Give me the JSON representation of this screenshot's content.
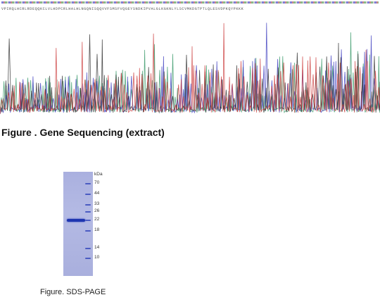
{
  "sequencing": {
    "sequence": "VPIRQLHCRLRDEQQKCLVLHDPCRLHALHLNGQNISQQVVFSMSFVQGEYSNDKIPVALGLKGKNLYLSCVMKDGTPTLQLESVDPKQYPKKK",
    "caption": "Figure . Gene Sequencing (extract)"
  },
  "gel": {
    "header": "kDa",
    "markers": [
      "70",
      "44",
      "33",
      "26",
      "22",
      "18",
      "14",
      "10"
    ],
    "caption": "Figure. SDS-PAGE"
  },
  "colors": {
    "trace_a": "#3a9a6a",
    "trace_c": "#4040c0",
    "trace_g": "#333333",
    "trace_t": "#cc4040",
    "gel_band": "#1e35b0"
  }
}
